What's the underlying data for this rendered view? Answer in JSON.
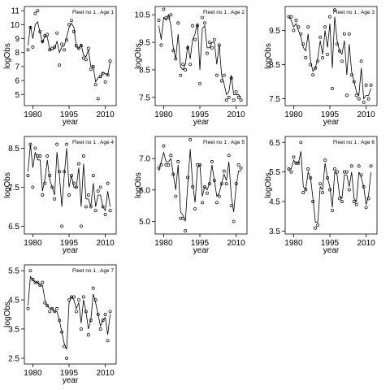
{
  "chart_data": [
    {
      "type": "line",
      "title": "Fleet no 1 , Age 1",
      "x_label": "year",
      "y_label": "logObs",
      "x": [
        1978,
        1979,
        1980,
        1981,
        1982,
        1983,
        1984,
        1985,
        1986,
        1987,
        1988,
        1989,
        1990,
        1991,
        1992,
        1993,
        1994,
        1995,
        1996,
        1997,
        1998,
        1999,
        2000,
        2001,
        2002,
        2003,
        2004,
        2005,
        2006,
        2007,
        2008,
        2009,
        2010,
        2011,
        2012
      ],
      "xlim": [
        1976.5,
        2014.5
      ],
      "xticks": [
        1980,
        1995,
        2010
      ],
      "ylim": [
        4.2,
        11.3
      ],
      "yticks": [
        5,
        6,
        7,
        8,
        9,
        10,
        11
      ],
      "series": [
        {
          "kind": "points",
          "color": "#000000",
          "values": [
            8.2,
            9.8,
            8.4,
            10.8,
            11.0,
            9.5,
            8.8,
            9.2,
            9.3,
            8.2,
            8.3,
            8.4,
            9.4,
            7.1,
            8.6,
            8.2,
            8.9,
            10.0,
            10.3,
            9.5,
            8.5,
            8.3,
            8.5,
            7.6,
            7.5,
            8.3,
            6.8,
            7.0,
            5.7,
            4.7,
            6.3,
            6.5,
            5.9,
            6.4,
            7.4
          ]
        },
        {
          "kind": "line",
          "color": "#000000",
          "values": [
            8.5,
            9.9,
            9.0,
            10.0,
            10.2,
            9.4,
            8.7,
            9.2,
            9.1,
            8.2,
            8.2,
            8.3,
            8.8,
            8.0,
            8.4,
            8.5,
            9.1,
            9.8,
            10.1,
            9.8,
            8.4,
            8.3,
            8.6,
            7.8,
            7.7,
            8.2,
            7.0,
            7.0,
            5.9,
            6.2,
            6.2,
            6.6,
            6.5,
            6.4,
            7.3
          ]
        }
      ]
    },
    {
      "type": "line",
      "title": "Fleet no 1 , Age 2",
      "x_label": "year",
      "y_label": "logObs",
      "x": [
        1978,
        1979,
        1980,
        1981,
        1982,
        1983,
        1984,
        1985,
        1986,
        1987,
        1988,
        1989,
        1990,
        1991,
        1992,
        1993,
        1994,
        1995,
        1996,
        1997,
        1998,
        1999,
        2000,
        2001,
        2002,
        2003,
        2004,
        2005,
        2006,
        2007,
        2008,
        2009,
        2010,
        2011,
        2012
      ],
      "xlim": [
        1976.5,
        2014.5
      ],
      "xticks": [
        1980,
        1995,
        2010
      ],
      "ylim": [
        7.2,
        10.8
      ],
      "yticks": [
        7.5,
        8.5,
        9.5,
        10.5
      ],
      "series": [
        {
          "kind": "points",
          "color": "#000000",
          "values": [
            10.3,
            9.4,
            10.7,
            10.4,
            10.4,
            10.5,
            9.2,
            8.9,
            10.2,
            8.3,
            8.7,
            8.5,
            9.3,
            8.7,
            10.1,
            9.6,
            10.1,
            8.0,
            10.4,
            10.2,
            9.1,
            9.5,
            9.3,
            9.6,
            8.3,
            9.4,
            8.1,
            8.3,
            7.4,
            7.5,
            8.2,
            7.4,
            7.7,
            7.5,
            7.4
          ]
        },
        {
          "kind": "line",
          "color": "#000000",
          "values": [
            10.1,
            9.6,
            10.4,
            10.3,
            10.5,
            10.1,
            9.3,
            8.9,
            9.8,
            8.6,
            8.5,
            8.7,
            9.4,
            8.9,
            9.6,
            9.8,
            10.2,
            8.5,
            10.0,
            10.1,
            9.3,
            9.3,
            9.5,
            9.5,
            8.7,
            9.4,
            8.3,
            8.0,
            7.6,
            7.7,
            8.3,
            7.6,
            7.6,
            7.6,
            7.5
          ]
        }
      ]
    },
    {
      "type": "line",
      "title": "Fleet no 1 , Age 3",
      "x_label": "year",
      "y_label": "logObs",
      "x": [
        1978,
        1979,
        1980,
        1981,
        1982,
        1983,
        1984,
        1985,
        1986,
        1987,
        1988,
        1989,
        1990,
        1991,
        1992,
        1993,
        1994,
        1995,
        1996,
        1997,
        1998,
        1999,
        2000,
        2001,
        2002,
        2003,
        2004,
        2005,
        2006,
        2007,
        2008,
        2009,
        2010,
        2011,
        2012
      ],
      "xlim": [
        1976.5,
        2014.5
      ],
      "xticks": [
        1980,
        1995,
        2010
      ],
      "ylim": [
        7.3,
        10.2
      ],
      "yticks": [
        7.5,
        8.5,
        9.5
      ],
      "series": [
        {
          "kind": "points",
          "color": "#000000",
          "values": [
            9.9,
            9.9,
            9.5,
            9.8,
            9.6,
            9.4,
            9.1,
            8.7,
            9.6,
            8.5,
            8.2,
            8.4,
            8.6,
            9.3,
            8.7,
            9.6,
            8.8,
            9.9,
            7.8,
            10.1,
            9.1,
            8.9,
            8.6,
            9.4,
            7.6,
            9.4,
            8.2,
            8.0,
            7.6,
            7.5,
            8.6,
            7.4,
            7.9,
            7.5,
            7.9
          ]
        },
        {
          "kind": "line",
          "color": "#000000",
          "values": [
            9.9,
            9.8,
            9.6,
            9.7,
            9.5,
            9.3,
            9.0,
            8.9,
            9.4,
            8.6,
            8.3,
            8.4,
            8.7,
            9.2,
            8.8,
            9.5,
            9.0,
            9.7,
            8.4,
            9.9,
            9.2,
            8.9,
            8.8,
            9.2,
            8.2,
            9.1,
            8.3,
            8.0,
            7.7,
            7.6,
            8.4,
            7.5,
            7.6,
            7.6,
            7.8
          ]
        }
      ]
    },
    {
      "type": "line",
      "title": "Fleet no 1 , Age 4",
      "x_label": "year",
      "y_label": "logObs",
      "x": [
        1978,
        1979,
        1980,
        1981,
        1982,
        1983,
        1984,
        1985,
        1986,
        1987,
        1988,
        1989,
        1990,
        1991,
        1992,
        1993,
        1994,
        1995,
        1996,
        1997,
        1998,
        1999,
        2000,
        2001,
        2002,
        2003,
        2004,
        2005,
        2006,
        2007,
        2008,
        2009,
        2010,
        2011,
        2012
      ],
      "xlim": [
        1976.5,
        2014.5
      ],
      "xticks": [
        1980,
        1995,
        2010
      ],
      "ylim": [
        6.3,
        8.8
      ],
      "yticks": [
        6.5,
        7.5,
        8.5
      ],
      "series": [
        {
          "kind": "points",
          "color": "#000000",
          "values": [
            7.8,
            8.6,
            7.5,
            8.5,
            8.3,
            8.3,
            7.3,
            7.6,
            8.3,
            7.8,
            7.5,
            7.2,
            8.6,
            7.9,
            6.5,
            7.9,
            8.6,
            7.3,
            7.8,
            7.6,
            7.5,
            8.1,
            6.5,
            8.3,
            7.0,
            7.3,
            7.0,
            7.8,
            6.9,
            7.4,
            7.5,
            7.0,
            6.8,
            7.6,
            6.9
          ]
        },
        {
          "kind": "line",
          "color": "#000000",
          "values": [
            7.9,
            8.6,
            8.0,
            8.4,
            8.2,
            8.2,
            7.4,
            7.7,
            8.2,
            7.7,
            7.5,
            7.3,
            8.4,
            7.8,
            7.0,
            7.8,
            8.5,
            7.5,
            7.8,
            7.5,
            7.5,
            8.0,
            7.0,
            8.1,
            7.2,
            7.2,
            7.0,
            7.6,
            7.0,
            7.3,
            7.3,
            7.0,
            6.9,
            7.4,
            7.0
          ]
        }
      ]
    },
    {
      "type": "line",
      "title": "Fleet no 1 , Age 5",
      "x_label": "year",
      "y_label": "logObs",
      "x": [
        1978,
        1979,
        1980,
        1981,
        1982,
        1983,
        1984,
        1985,
        1986,
        1987,
        1988,
        1989,
        1990,
        1991,
        1992,
        1993,
        1994,
        1995,
        1996,
        1997,
        1998,
        1999,
        2000,
        2001,
        2002,
        2003,
        2004,
        2005,
        2006,
        2007,
        2008,
        2009,
        2010,
        2011,
        2012
      ],
      "xlim": [
        1976.5,
        2014.5
      ],
      "xticks": [
        1980,
        1995,
        2010
      ],
      "ylim": [
        4.6,
        7.7
      ],
      "yticks": [
        {
          "value": 5,
          "label": "5.0"
        },
        {
          "value": 6,
          "label": "6.0"
        },
        {
          "value": 7,
          "label": "7.0"
        }
      ],
      "series": [
        {
          "kind": "points",
          "color": "#000000",
          "values": [
            6.7,
            6.8,
            7.4,
            6.8,
            6.8,
            7.1,
            6.5,
            5.8,
            6.9,
            5.1,
            5.1,
            4.7,
            6.4,
            7.6,
            6.1,
            5.4,
            6.8,
            6.8,
            5.6,
            6.1,
            5.9,
            6.2,
            6.9,
            6.3,
            5.6,
            5.8,
            6.2,
            6.6,
            6.2,
            7.1,
            5.5,
            5.0,
            6.2,
            6.8,
            6.7
          ]
        },
        {
          "kind": "line",
          "color": "#000000",
          "values": [
            6.6,
            6.9,
            7.2,
            6.9,
            6.9,
            7.0,
            6.5,
            6.0,
            6.8,
            5.3,
            5.2,
            5.0,
            6.2,
            7.3,
            6.2,
            5.6,
            6.7,
            6.8,
            5.8,
            6.1,
            6.0,
            6.2,
            6.8,
            6.3,
            5.8,
            5.9,
            6.2,
            6.5,
            6.3,
            6.9,
            5.8,
            5.3,
            6.1,
            6.6,
            6.6
          ]
        }
      ]
    },
    {
      "type": "line",
      "title": "Fleet no 1 , Age 6",
      "x_label": "year",
      "y_label": "logObs",
      "x": [
        1978,
        1979,
        1980,
        1981,
        1982,
        1983,
        1984,
        1985,
        1986,
        1987,
        1988,
        1989,
        1990,
        1991,
        1992,
        1993,
        1994,
        1995,
        1996,
        1997,
        1998,
        1999,
        2000,
        2001,
        2002,
        2003,
        2004,
        2005,
        2006,
        2007,
        2008,
        2009,
        2010,
        2011,
        2012
      ],
      "xlim": [
        1976.5,
        2014.5
      ],
      "xticks": [
        1980,
        1995,
        2010
      ],
      "ylim": [
        3.4,
        6.7
      ],
      "yticks": [
        3.5,
        4.5,
        5.5,
        6.5
      ],
      "series": [
        {
          "kind": "points",
          "color": "#000000",
          "values": [
            5.6,
            5.5,
            6.0,
            5.8,
            5.8,
            6.5,
            4.8,
            4.9,
            5.6,
            5.3,
            4.5,
            3.6,
            3.7,
            5.1,
            4.8,
            5.9,
            5.3,
            4.9,
            4.2,
            5.6,
            5.5,
            4.6,
            4.5,
            5.5,
            5.5,
            4.9,
            5.7,
            4.5,
            4.4,
            5.7,
            5.4,
            5.0,
            4.3,
            4.6,
            5.7
          ]
        },
        {
          "kind": "line",
          "color": "#000000",
          "values": [
            5.6,
            5.6,
            5.9,
            5.8,
            5.8,
            6.2,
            5.0,
            4.9,
            5.5,
            5.3,
            4.6,
            3.8,
            3.8,
            5.0,
            4.9,
            5.8,
            5.3,
            5.0,
            4.3,
            5.5,
            5.4,
            4.7,
            4.6,
            5.4,
            5.4,
            5.0,
            5.5,
            4.6,
            4.5,
            5.5,
            5.3,
            5.0,
            4.4,
            4.7,
            5.5
          ]
        }
      ]
    },
    {
      "type": "line",
      "title": "Fleet no 1 , Age 7",
      "x_label": "year",
      "y_label": "logObs",
      "x": [
        1978,
        1979,
        1980,
        1981,
        1982,
        1983,
        1984,
        1985,
        1986,
        1987,
        1988,
        1989,
        1990,
        1991,
        1992,
        1993,
        1994,
        1995,
        1996,
        1997,
        1998,
        1999,
        2000,
        2001,
        2002,
        2003,
        2004,
        2005,
        2006,
        2007,
        2008,
        2009,
        2010,
        2011,
        2012
      ],
      "xlim": [
        1976.5,
        2014.5
      ],
      "xticks": [
        1980,
        1995,
        2010
      ],
      "ylim": [
        2.3,
        5.7
      ],
      "yticks": [
        2.5,
        3.5,
        4.5,
        5.5
      ],
      "series": [
        {
          "kind": "points",
          "color": "#000000",
          "values": [
            4.2,
            5.5,
            5.2,
            5.1,
            5.1,
            5.0,
            5.1,
            4.4,
            4.3,
            4.1,
            4.2,
            4.1,
            4.2,
            3.8,
            3.4,
            2.9,
            2.5,
            4.5,
            4.6,
            4.6,
            4.1,
            4.5,
            3.5,
            4.6,
            4.1,
            3.3,
            3.8,
            4.9,
            4.5,
            4.0,
            3.5,
            3.8,
            4.0,
            3.1,
            4.1
          ]
        },
        {
          "kind": "line",
          "color": "#000000",
          "values": [
            4.3,
            5.3,
            5.2,
            5.1,
            5.1,
            5.0,
            5.0,
            4.5,
            4.3,
            4.2,
            4.2,
            4.1,
            4.1,
            3.8,
            3.4,
            3.0,
            2.8,
            4.4,
            4.6,
            4.5,
            4.2,
            4.4,
            3.7,
            4.5,
            4.1,
            3.5,
            3.8,
            4.7,
            4.4,
            4.0,
            3.6,
            3.8,
            3.9,
            3.3,
            4.0
          ]
        }
      ]
    }
  ]
}
